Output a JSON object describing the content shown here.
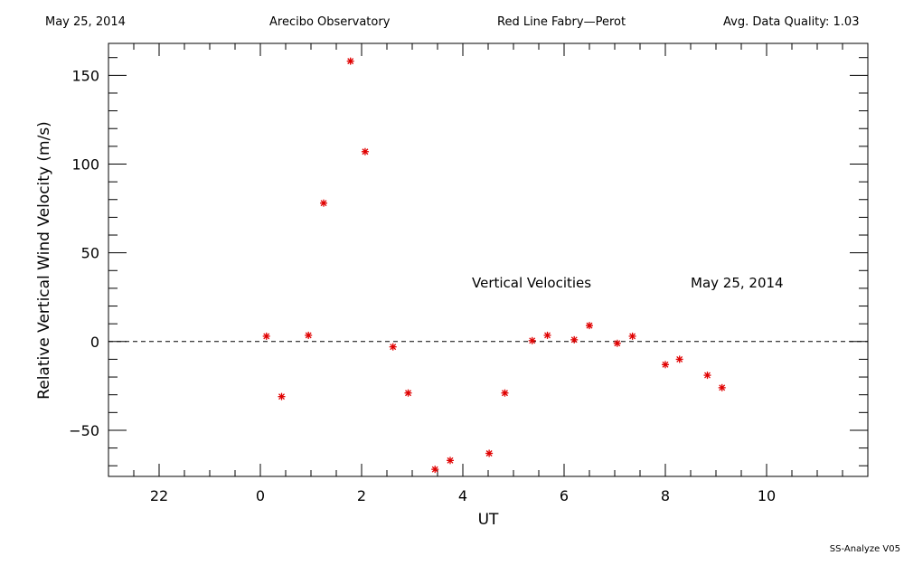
{
  "header": {
    "date": "May 25, 2014",
    "site": "Arecibo Observatory",
    "instrument": "Red Line Fabry—Perot",
    "quality": "Avg. Data Quality: 1.03"
  },
  "footer": "SS-Analyze V05",
  "chart_data": {
    "type": "scatter",
    "xlabel": "UT",
    "ylabel": "Relative Vertical Wind Velocity (m/s)",
    "xlim": [
      -3,
      12
    ],
    "ylim": [
      -76,
      168
    ],
    "x_ticks": [
      22,
      0,
      2,
      4,
      6,
      8,
      10
    ],
    "y_ticks": [
      -50,
      0,
      50,
      100,
      150
    ],
    "zero_line": "dashed",
    "marker": "asterisk",
    "marker_color": "#e00000",
    "annotations": [
      "Vertical Velocities",
      "May 25, 2014"
    ],
    "points": [
      {
        "x": 0.12,
        "y": 3
      },
      {
        "x": 0.42,
        "y": -31
      },
      {
        "x": 0.95,
        "y": 3.5
      },
      {
        "x": 1.25,
        "y": 78
      },
      {
        "x": 1.78,
        "y": 158
      },
      {
        "x": 2.07,
        "y": 107
      },
      {
        "x": 2.62,
        "y": -3
      },
      {
        "x": 2.92,
        "y": -29
      },
      {
        "x": 3.45,
        "y": -72
      },
      {
        "x": 3.75,
        "y": -67
      },
      {
        "x": 4.52,
        "y": -63
      },
      {
        "x": 4.83,
        "y": -29
      },
      {
        "x": 5.37,
        "y": 0.5
      },
      {
        "x": 5.67,
        "y": 3.5
      },
      {
        "x": 6.2,
        "y": 1
      },
      {
        "x": 6.5,
        "y": 9
      },
      {
        "x": 7.05,
        "y": -1
      },
      {
        "x": 7.35,
        "y": 3
      },
      {
        "x": 8.0,
        "y": -13
      },
      {
        "x": 8.28,
        "y": -10
      },
      {
        "x": 8.83,
        "y": -19
      },
      {
        "x": 9.12,
        "y": -26
      }
    ]
  }
}
